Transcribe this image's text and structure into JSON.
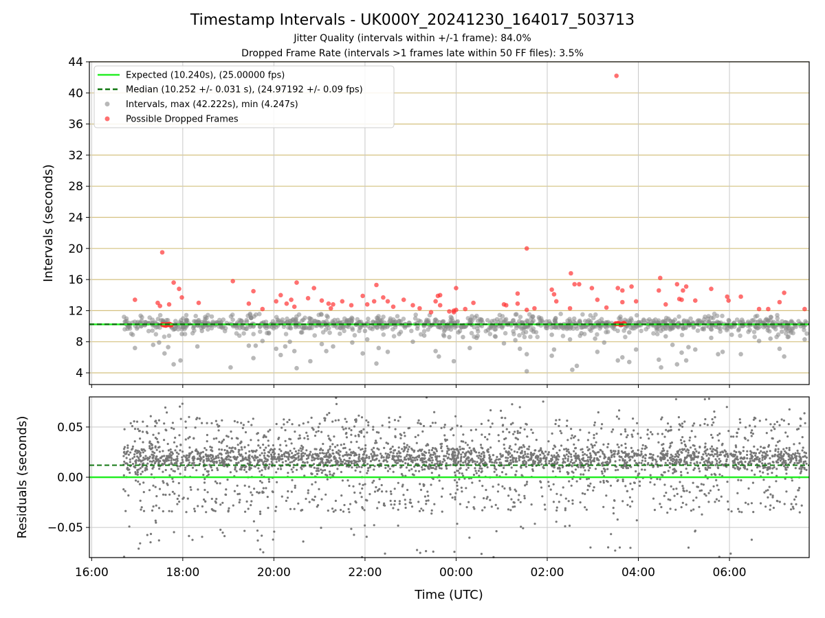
{
  "header": {
    "title": "Timestamp Intervals - UK000Y_20241230_164017_503713",
    "subtitle1": "Jitter Quality (intervals within +/-1 frame): 84.0%",
    "subtitle2": "Dropped Frame Rate (intervals >1 frames late within 50 FF files): 3.5%"
  },
  "colors": {
    "expected": "#22ee22",
    "median": "#117711",
    "intervals": "#888888",
    "dropped": "#ff3333",
    "residuals": "#777777",
    "gold_grid": "#d4c07e",
    "grey_grid": "#c8c8c8"
  },
  "chart_data": [
    {
      "type": "scatter",
      "ylabel": "Intervals (seconds)",
      "ylim": [
        2.5,
        44
      ],
      "yticks": [
        "4",
        "8",
        "12",
        "16",
        "20",
        "24",
        "28",
        "32",
        "36",
        "40",
        "44"
      ],
      "expected_line": 10.24,
      "median_line": 10.252,
      "legend": [
        "Expected (10.240s), (25.00000 fps)",
        "Median (10.252 +/- 0.031 s), (24.97192 +/- 0.09 fps)",
        "Intervals, max (42.222s), min (4.247s)",
        "Possible Dropped Frames"
      ],
      "legend_placement": "top-left",
      "dropped_points": [
        [
          16.95,
          13.4
        ],
        [
          17.45,
          13.0
        ],
        [
          17.5,
          12.6
        ],
        [
          17.55,
          19.5
        ],
        [
          17.7,
          12.8
        ],
        [
          17.8,
          15.6
        ],
        [
          17.92,
          14.8
        ],
        [
          17.98,
          13.7
        ],
        [
          18.35,
          13.0
        ],
        [
          19.1,
          15.8
        ],
        [
          19.45,
          12.9
        ],
        [
          19.55,
          14.5
        ],
        [
          19.75,
          12.2
        ],
        [
          20.05,
          13.2
        ],
        [
          20.15,
          14.0
        ],
        [
          20.28,
          12.9
        ],
        [
          20.38,
          13.4
        ],
        [
          20.45,
          12.5
        ],
        [
          20.5,
          15.6
        ],
        [
          20.75,
          13.6
        ],
        [
          20.88,
          14.9
        ],
        [
          21.05,
          13.3
        ],
        [
          21.2,
          12.9
        ],
        [
          21.25,
          12.3
        ],
        [
          21.3,
          12.8
        ],
        [
          21.5,
          13.2
        ],
        [
          21.7,
          12.7
        ],
        [
          21.95,
          13.9
        ],
        [
          22.05,
          12.8
        ],
        [
          22.2,
          13.2
        ],
        [
          22.25,
          15.3
        ],
        [
          22.4,
          13.7
        ],
        [
          22.5,
          13.2
        ],
        [
          22.62,
          12.5
        ],
        [
          22.85,
          13.4
        ],
        [
          23.05,
          12.7
        ],
        [
          23.2,
          12.3
        ],
        [
          23.45,
          11.8
        ],
        [
          23.55,
          13.2
        ],
        [
          23.6,
          13.9
        ],
        [
          23.65,
          14.0
        ],
        [
          23.65,
          12.7
        ],
        [
          23.85,
          11.9
        ],
        [
          23.95,
          12.0
        ],
        [
          23.95,
          11.8
        ],
        [
          24.0,
          12.1
        ],
        [
          24.0,
          14.9
        ],
        [
          24.2,
          12.2
        ],
        [
          24.38,
          13.0
        ],
        [
          25.05,
          12.8
        ],
        [
          25.1,
          12.7
        ],
        [
          25.35,
          12.9
        ],
        [
          25.35,
          14.2
        ],
        [
          25.55,
          20.0
        ],
        [
          25.55,
          12.1
        ],
        [
          25.72,
          12.3
        ],
        [
          26.1,
          14.7
        ],
        [
          26.15,
          14.1
        ],
        [
          26.2,
          13.2
        ],
        [
          26.5,
          12.3
        ],
        [
          26.52,
          16.8
        ],
        [
          26.6,
          15.4
        ],
        [
          26.7,
          15.4
        ],
        [
          26.98,
          14.9
        ],
        [
          27.1,
          13.4
        ],
        [
          27.3,
          12.4
        ],
        [
          27.52,
          42.2
        ],
        [
          27.55,
          14.9
        ],
        [
          27.65,
          13.1
        ],
        [
          27.65,
          14.6
        ],
        [
          27.85,
          15.1
        ],
        [
          27.95,
          13.2
        ],
        [
          28.45,
          14.6
        ],
        [
          28.48,
          16.2
        ],
        [
          28.6,
          12.8
        ],
        [
          28.85,
          15.4
        ],
        [
          28.9,
          13.5
        ],
        [
          28.95,
          13.4
        ],
        [
          28.98,
          14.6
        ],
        [
          29.05,
          15.1
        ],
        [
          29.25,
          13.3
        ],
        [
          29.6,
          14.8
        ],
        [
          29.95,
          13.8
        ],
        [
          29.98,
          13.3
        ],
        [
          30.25,
          13.8
        ],
        [
          30.65,
          12.2
        ],
        [
          30.85,
          12.2
        ],
        [
          31.1,
          13.1
        ],
        [
          31.2,
          14.3
        ],
        [
          31.65,
          12.2
        ]
      ],
      "dropped_clusters": [
        [
          17.55,
          17.75,
          10.2
        ],
        [
          27.5,
          27.7,
          10.3
        ]
      ],
      "low_points": [
        [
          16.95,
          7.2
        ],
        [
          17.35,
          7.6
        ],
        [
          17.48,
          7.9
        ],
        [
          17.6,
          6.5
        ],
        [
          17.68,
          7.3
        ],
        [
          17.8,
          5.1
        ],
        [
          17.95,
          5.6
        ],
        [
          17.98,
          9.0
        ],
        [
          18.32,
          7.4
        ],
        [
          18.42,
          9.4
        ],
        [
          19.05,
          4.7
        ],
        [
          19.45,
          7.5
        ],
        [
          19.55,
          5.9
        ],
        [
          19.6,
          7.5
        ],
        [
          19.75,
          8.1
        ],
        [
          20.05,
          7.1
        ],
        [
          20.15,
          6.3
        ],
        [
          20.25,
          7.4
        ],
        [
          20.35,
          8.0
        ],
        [
          20.45,
          6.8
        ],
        [
          20.5,
          4.6
        ],
        [
          20.6,
          9.2
        ],
        [
          20.8,
          5.5
        ],
        [
          21.05,
          7.7
        ],
        [
          21.15,
          6.8
        ],
        [
          21.3,
          7.4
        ],
        [
          21.45,
          9.8
        ],
        [
          21.72,
          7.9
        ],
        [
          21.95,
          6.5
        ],
        [
          22.0,
          9.4
        ],
        [
          22.05,
          8.3
        ],
        [
          22.25,
          5.2
        ],
        [
          22.3,
          7.2
        ],
        [
          22.5,
          6.7
        ],
        [
          22.75,
          9.0
        ],
        [
          23.05,
          8.0
        ],
        [
          23.15,
          9.7
        ],
        [
          23.3,
          8.8
        ],
        [
          23.55,
          6.8
        ],
        [
          23.62,
          6.1
        ],
        [
          23.85,
          8.6
        ],
        [
          23.95,
          5.5
        ],
        [
          24.05,
          9.2
        ],
        [
          24.15,
          8.6
        ],
        [
          24.3,
          7.2
        ],
        [
          24.45,
          8.5
        ],
        [
          24.7,
          9.5
        ],
        [
          25.05,
          7.8
        ],
        [
          25.3,
          8.2
        ],
        [
          25.4,
          7.1
        ],
        [
          25.55,
          6.4
        ],
        [
          25.55,
          4.2
        ],
        [
          25.7,
          9.3
        ],
        [
          26.1,
          8.9
        ],
        [
          26.1,
          6.2
        ],
        [
          26.15,
          7.0
        ],
        [
          26.5,
          8.3
        ],
        [
          26.55,
          4.4
        ],
        [
          26.65,
          4.9
        ],
        [
          26.75,
          9.1
        ],
        [
          27.05,
          8.4
        ],
        [
          27.1,
          6.7
        ],
        [
          27.25,
          7.9
        ],
        [
          27.55,
          5.6
        ],
        [
          27.65,
          6.0
        ],
        [
          27.8,
          9.2
        ],
        [
          27.8,
          5.4
        ],
        [
          27.95,
          7.0
        ],
        [
          28.45,
          5.7
        ],
        [
          28.5,
          4.7
        ],
        [
          28.6,
          8.7
        ],
        [
          28.75,
          7.6
        ],
        [
          28.85,
          5.1
        ],
        [
          28.95,
          6.6
        ],
        [
          29.05,
          5.6
        ],
        [
          29.1,
          7.3
        ],
        [
          29.25,
          7.0
        ],
        [
          29.6,
          8.5
        ],
        [
          29.75,
          6.4
        ],
        [
          29.85,
          6.7
        ],
        [
          30.05,
          8.9
        ],
        [
          30.25,
          6.4
        ],
        [
          30.65,
          8.1
        ],
        [
          30.9,
          8.4
        ],
        [
          31.1,
          7.1
        ],
        [
          31.15,
          9.3
        ],
        [
          31.2,
          6.1
        ],
        [
          31.65,
          8.3
        ]
      ]
    },
    {
      "type": "scatter",
      "xlabel": "Time (UTC)",
      "ylabel": "Residuals (seconds)",
      "ylim": [
        -0.08,
        0.08
      ],
      "yticks": [
        "−0.05",
        "0.00",
        "0.05"
      ],
      "xlim": [
        15.95,
        31.75
      ],
      "xticks": [
        "16:00",
        "18:00",
        "20:00",
        "22:00",
        "00:00",
        "02:00",
        "04:00",
        "06:00"
      ],
      "expected_line": 0.0,
      "median_line": 0.012,
      "data_start": 16.7,
      "data_end": 31.7
    }
  ]
}
